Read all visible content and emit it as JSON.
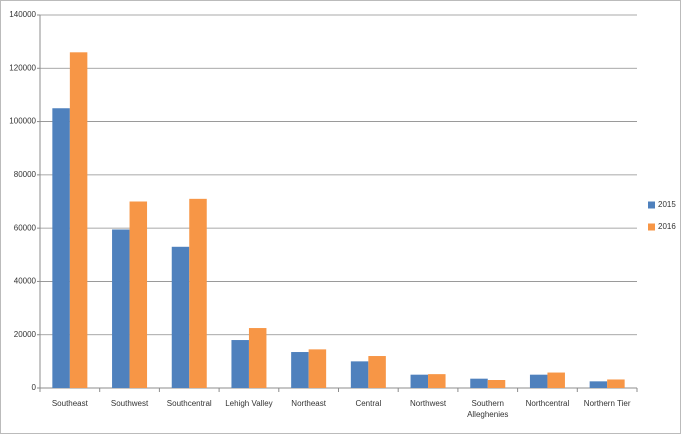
{
  "chart_data": {
    "type": "bar",
    "categories": [
      "Southeast",
      "Southwest",
      "Southcentral",
      "Lehigh Valley",
      "Northeast",
      "Central",
      "Northwest",
      "Southern Alleghenies",
      "Northcentral",
      "Northern Tier"
    ],
    "series": [
      {
        "name": "2015",
        "color": "#4f81bd",
        "values": [
          105000,
          59500,
          53000,
          18000,
          13500,
          10000,
          5000,
          3500,
          5000,
          2500
        ]
      },
      {
        "name": "2016",
        "color": "#f79646",
        "values": [
          126000,
          70000,
          71000,
          22500,
          14500,
          12000,
          5200,
          3000,
          5800,
          3200
        ]
      }
    ],
    "ylim": [
      0,
      140000
    ],
    "yticks": [
      0,
      20000,
      40000,
      60000,
      80000,
      100000,
      120000,
      140000
    ],
    "grid": true,
    "legend": "right"
  }
}
